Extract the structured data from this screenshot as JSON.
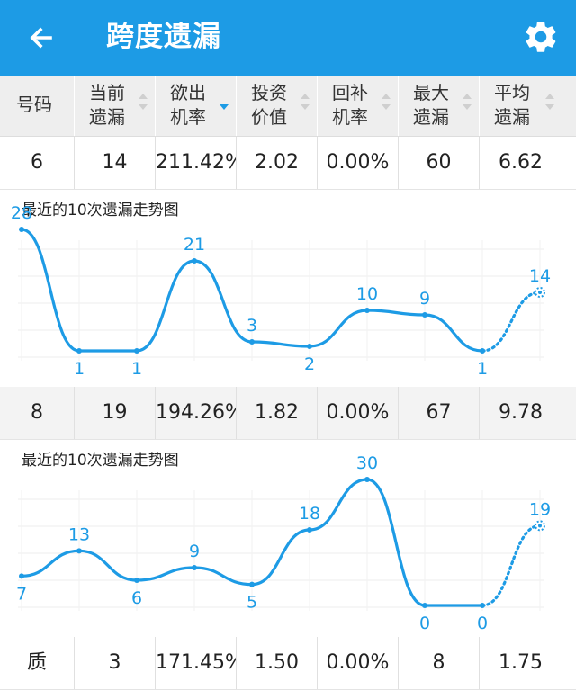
{
  "app": {
    "title": "跨度遗漏"
  },
  "table": {
    "headers": [
      {
        "l1": "号码",
        "l2": "",
        "sort": "none"
      },
      {
        "l1": "当前",
        "l2": "遗漏",
        "sort": "both"
      },
      {
        "l1": "欲出",
        "l2": "机率",
        "sort": "desc"
      },
      {
        "l1": "投资",
        "l2": "价值",
        "sort": "both"
      },
      {
        "l1": "回补",
        "l2": "机率",
        "sort": "both"
      },
      {
        "l1": "最大",
        "l2": "遗漏",
        "sort": "both"
      },
      {
        "l1": "平均",
        "l2": "遗漏",
        "sort": "both"
      }
    ],
    "rows": [
      {
        "cells": [
          "6",
          "14",
          "211.42%",
          "2.02",
          "0.00%",
          "60",
          "6.62"
        ]
      },
      {
        "cells": [
          "8",
          "19",
          "194.26%",
          "1.82",
          "0.00%",
          "67",
          "9.78"
        ]
      },
      {
        "cells": [
          "质",
          "3",
          "171.45%",
          "1.50",
          "0.00%",
          "8",
          "1.75"
        ]
      }
    ]
  },
  "charts": [
    {
      "title": "最近的10次遗漏走势图"
    },
    {
      "title": "最近的10次遗漏走势图"
    }
  ],
  "chart_data": [
    {
      "type": "line",
      "title": "最近的10次遗漏走势图",
      "x": [
        1,
        2,
        3,
        4,
        5,
        6,
        7,
        8,
        9,
        10
      ],
      "values": [
        28,
        1,
        1,
        21,
        3,
        2,
        10,
        9,
        1,
        14
      ],
      "last_point_dotted": true,
      "color": "#1d9be5"
    },
    {
      "type": "line",
      "title": "最近的10次遗漏走势图",
      "x": [
        1,
        2,
        3,
        4,
        5,
        6,
        7,
        8,
        9,
        10
      ],
      "values": [
        7,
        13,
        6,
        9,
        5,
        18,
        30,
        0,
        0,
        19
      ],
      "last_point_dotted": true,
      "color": "#1d9be5"
    }
  ],
  "colors": {
    "accent": "#1d9be5",
    "header_bg": "#eeeeee"
  },
  "icons": {
    "back": "arrow-left-icon",
    "settings": "gear-icon"
  }
}
